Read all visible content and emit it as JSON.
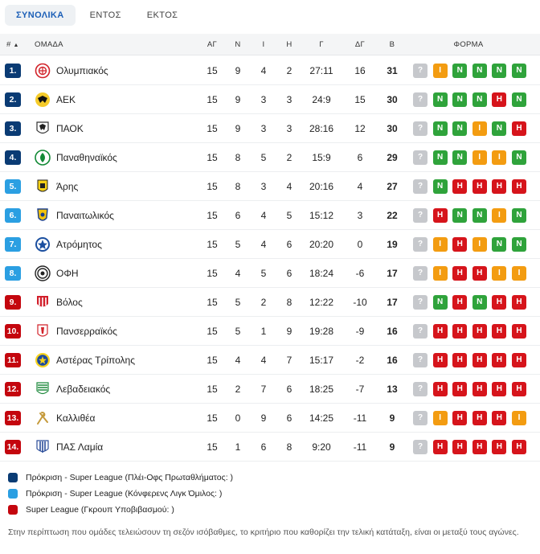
{
  "tabs": [
    {
      "label": "ΣΥΝΟΛΙΚΑ",
      "active": true
    },
    {
      "label": "ΕΝΤΟΣ",
      "active": false
    },
    {
      "label": "ΕΚΤΟΣ",
      "active": false
    }
  ],
  "columns": {
    "pos": "#",
    "sort_arrow": "▲",
    "team": "ΟΜΑΔΑ",
    "played": "ΑΓ",
    "wins": "Ν",
    "draws": "Ι",
    "losses": "Η",
    "goals": "Γ",
    "diff": "ΔΓ",
    "points": "Β",
    "form": "ΦΟΡΜΑ"
  },
  "colors": {
    "zone_playoff": "#0a3b74",
    "zone_conference": "#2b9fe2",
    "zone_relegation": "#c4060e",
    "win": "#2fa33b",
    "draw": "#f39c11",
    "loss": "#d6141b",
    "unknown": "#c6c8cc"
  },
  "form_labels": {
    "W": "N",
    "D": "I",
    "L": "H",
    "U": "?"
  },
  "rows": [
    {
      "pos": "1.",
      "zone": "playoff",
      "team": "Ολυμπιακός",
      "logo": "olympiacos-logo",
      "played": "15",
      "wins": "9",
      "draws": "4",
      "losses": "2",
      "goals": "27:11",
      "diff": "16",
      "points": "31",
      "form": [
        "U",
        "D",
        "W",
        "W",
        "W",
        "W"
      ]
    },
    {
      "pos": "2.",
      "zone": "playoff",
      "team": "ΑΕΚ",
      "logo": "aek-logo",
      "played": "15",
      "wins": "9",
      "draws": "3",
      "losses": "3",
      "goals": "24:9",
      "diff": "15",
      "points": "30",
      "form": [
        "U",
        "W",
        "W",
        "W",
        "L",
        "W"
      ]
    },
    {
      "pos": "3.",
      "zone": "playoff",
      "team": "ΠΑΟΚ",
      "logo": "paok-logo",
      "played": "15",
      "wins": "9",
      "draws": "3",
      "losses": "3",
      "goals": "28:16",
      "diff": "12",
      "points": "30",
      "form": [
        "U",
        "W",
        "W",
        "D",
        "W",
        "L"
      ]
    },
    {
      "pos": "4.",
      "zone": "playoff",
      "team": "Παναθηναϊκός",
      "logo": "panathinaikos-logo",
      "played": "15",
      "wins": "8",
      "draws": "5",
      "losses": "2",
      "goals": "15:9",
      "diff": "6",
      "points": "29",
      "form": [
        "U",
        "W",
        "W",
        "D",
        "D",
        "W"
      ]
    },
    {
      "pos": "5.",
      "zone": "conference",
      "team": "Άρης",
      "logo": "aris-logo",
      "played": "15",
      "wins": "8",
      "draws": "3",
      "losses": "4",
      "goals": "20:16",
      "diff": "4",
      "points": "27",
      "form": [
        "U",
        "W",
        "L",
        "L",
        "L",
        "L"
      ]
    },
    {
      "pos": "6.",
      "zone": "conference",
      "team": "Παναιτωλικός",
      "logo": "panaitolikos-logo",
      "played": "15",
      "wins": "6",
      "draws": "4",
      "losses": "5",
      "goals": "15:12",
      "diff": "3",
      "points": "22",
      "form": [
        "U",
        "L",
        "W",
        "W",
        "D",
        "W"
      ]
    },
    {
      "pos": "7.",
      "zone": "conference",
      "team": "Ατρόμητος",
      "logo": "atromitos-logo",
      "played": "15",
      "wins": "5",
      "draws": "4",
      "losses": "6",
      "goals": "20:20",
      "diff": "0",
      "points": "19",
      "form": [
        "U",
        "D",
        "L",
        "D",
        "W",
        "W"
      ]
    },
    {
      "pos": "8.",
      "zone": "conference",
      "team": "ΟΦΗ",
      "logo": "ofi-logo",
      "played": "15",
      "wins": "4",
      "draws": "5",
      "losses": "6",
      "goals": "18:24",
      "diff": "-6",
      "points": "17",
      "form": [
        "U",
        "D",
        "L",
        "L",
        "D",
        "D"
      ]
    },
    {
      "pos": "9.",
      "zone": "relegation",
      "team": "Βόλος",
      "logo": "volos-logo",
      "played": "15",
      "wins": "5",
      "draws": "2",
      "losses": "8",
      "goals": "12:22",
      "diff": "-10",
      "points": "17",
      "form": [
        "U",
        "W",
        "L",
        "W",
        "L",
        "L"
      ]
    },
    {
      "pos": "10.",
      "zone": "relegation",
      "team": "Πανσερραϊκός",
      "logo": "panserraikos-logo",
      "played": "15",
      "wins": "5",
      "draws": "1",
      "losses": "9",
      "goals": "19:28",
      "diff": "-9",
      "points": "16",
      "form": [
        "U",
        "L",
        "L",
        "L",
        "L",
        "L"
      ]
    },
    {
      "pos": "11.",
      "zone": "relegation",
      "team": "Αστέρας Τρίπολης",
      "logo": "asteras-tripolis-logo",
      "played": "15",
      "wins": "4",
      "draws": "4",
      "losses": "7",
      "goals": "15:17",
      "diff": "-2",
      "points": "16",
      "form": [
        "U",
        "L",
        "L",
        "L",
        "L",
        "L"
      ]
    },
    {
      "pos": "12.",
      "zone": "relegation",
      "team": "Λεβαδειακός",
      "logo": "levadiakos-logo",
      "played": "15",
      "wins": "2",
      "draws": "7",
      "losses": "6",
      "goals": "18:25",
      "diff": "-7",
      "points": "13",
      "form": [
        "U",
        "L",
        "L",
        "L",
        "L",
        "L"
      ]
    },
    {
      "pos": "13.",
      "zone": "relegation",
      "team": "Καλλιθέα",
      "logo": "kallithea-logo",
      "played": "15",
      "wins": "0",
      "draws": "9",
      "losses": "6",
      "goals": "14:25",
      "diff": "-11",
      "points": "9",
      "form": [
        "U",
        "D",
        "L",
        "L",
        "L",
        "D"
      ]
    },
    {
      "pos": "14.",
      "zone": "relegation",
      "team": "ΠΑΣ Λαμία",
      "logo": "pas-lamia-logo",
      "played": "15",
      "wins": "1",
      "draws": "6",
      "losses": "8",
      "goals": "9:20",
      "diff": "-11",
      "points": "9",
      "form": [
        "U",
        "L",
        "L",
        "L",
        "L",
        "L"
      ]
    }
  ],
  "legend": [
    {
      "zone": "playoff",
      "label": "Πρόκριση - Super League (Πλέι-Οφς Πρωταθλήματος: )"
    },
    {
      "zone": "conference",
      "label": "Πρόκριση - Super League (Κόνφερενς Λιγκ Όμιλος: )"
    },
    {
      "zone": "relegation",
      "label": "Super League (Γκρουπ Υποβιβασμού: )"
    }
  ],
  "note": "Στην περίπτωση που ομάδες τελειώσουν τη σεζόν ισόβαθμες, το κριτήριο που καθορίζει την τελική κατάταξη, είναι οι μεταξύ τους αγώνες."
}
